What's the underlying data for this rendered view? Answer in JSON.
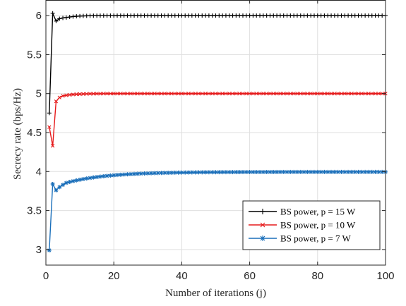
{
  "chart_data": {
    "type": "line",
    "title": "",
    "xlabel": "Number of iterations (j)",
    "ylabel": "Secrecy rate (bps/Hz)",
    "xlim": [
      0,
      100
    ],
    "ylim": [
      2.8,
      6.2
    ],
    "xticks": [
      0,
      20,
      40,
      60,
      80,
      100
    ],
    "xtick_labels": [
      "0",
      "20",
      "40",
      "60",
      "80",
      "100"
    ],
    "yticks": [
      3,
      3.5,
      4,
      4.5,
      5,
      5.5,
      6
    ],
    "ytick_labels": [
      "3",
      "3.5",
      "4",
      "4.5",
      "5",
      "5.5",
      "6"
    ],
    "grid": true,
    "legend_position": "bottom-right",
    "series": [
      {
        "name": "BS power, p = 15 W",
        "color": "#000000",
        "marker": "plus",
        "head": [
          [
            1,
            4.75
          ],
          [
            2,
            6.03
          ],
          [
            3,
            5.93
          ],
          [
            4,
            5.96
          ],
          [
            5,
            5.97
          ]
        ],
        "asymptote": 6.0,
        "tail_start": 6,
        "tail_start_value": 5.975,
        "rate": 0.35
      },
      {
        "name": "BS power, p = 10 W",
        "color": "#e6191a",
        "marker": "x",
        "head": [
          [
            1,
            4.57
          ],
          [
            2,
            4.33
          ],
          [
            3,
            4.9
          ],
          [
            4,
            4.95
          ],
          [
            5,
            4.97
          ]
        ],
        "asymptote": 5.0,
        "tail_start": 6,
        "tail_start_value": 4.978,
        "rate": 0.3
      },
      {
        "name": "BS power, p = 7 W",
        "color": "#1a6fba",
        "marker": "asterisk",
        "head": [
          [
            1,
            2.99
          ],
          [
            2,
            3.84
          ],
          [
            3,
            3.76
          ],
          [
            4,
            3.8
          ],
          [
            5,
            3.83
          ]
        ],
        "asymptote": 3.995,
        "tail_start": 6,
        "tail_start_value": 3.855,
        "rate": 0.085
      }
    ]
  }
}
